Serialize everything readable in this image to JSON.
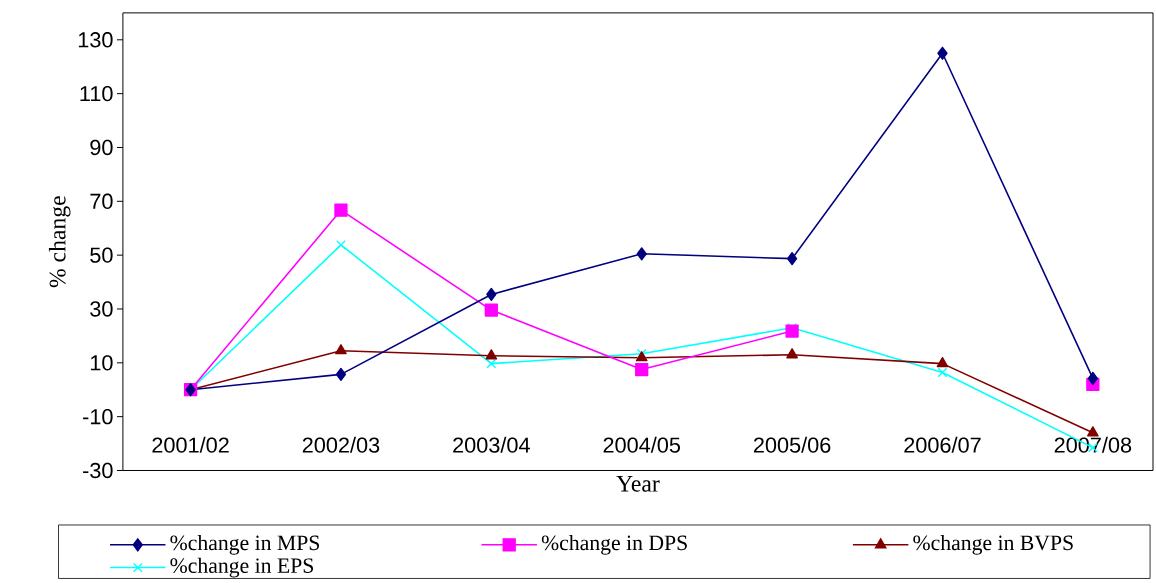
{
  "chart_data": {
    "type": "line",
    "xlabel": "Year",
    "ylabel": "% change",
    "categories": [
      "2001/02",
      "2002/03",
      "2003/04",
      "2004/05",
      "2005/06",
      "2006/07",
      "2007/08"
    ],
    "ylim": [
      -30,
      140
    ],
    "yticks": [
      -30,
      -10,
      10,
      30,
      50,
      70,
      90,
      110,
      130
    ],
    "grid": false,
    "legend": "bottom",
    "line_style": "solid",
    "series": [
      {
        "name": "%change in MPS",
        "color": "#000080",
        "marker": "diamond",
        "values": [
          0,
          5.7,
          35.4,
          50.5,
          48.7,
          125,
          4.2
        ]
      },
      {
        "name": "%change in DPS",
        "color": "#ff00ff",
        "marker": "square",
        "values": [
          0,
          66.7,
          29.6,
          7.5,
          21.8,
          null,
          2
        ]
      },
      {
        "name": "%change in BVPS",
        "color": "#800000",
        "marker": "triangle",
        "values": [
          0,
          14.5,
          12.6,
          11.9,
          13,
          9.7,
          -16
        ]
      },
      {
        "name": "%change in EPS",
        "color": "#00ffff",
        "marker": "cross",
        "values": [
          0,
          53.8,
          9.7,
          13.4,
          23,
          6.4,
          -21.5
        ]
      }
    ]
  }
}
